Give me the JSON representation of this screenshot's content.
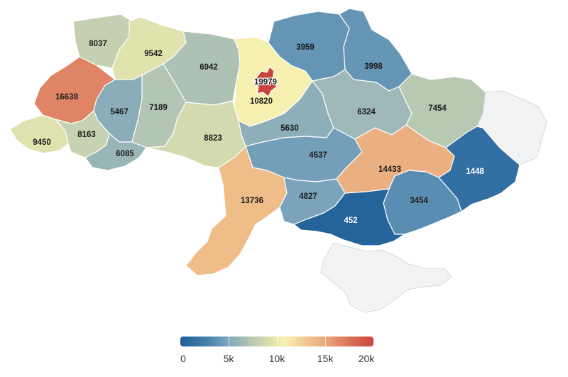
{
  "map": {
    "regions": [
      {
        "id": "volyn",
        "value": 8037
      },
      {
        "id": "rivne",
        "value": 9542
      },
      {
        "id": "zhytomyr",
        "value": 6942
      },
      {
        "id": "kyiv-oblast",
        "value": 10820
      },
      {
        "id": "kyiv-city",
        "value": 19979
      },
      {
        "id": "chernihiv",
        "value": 3959
      },
      {
        "id": "sumy",
        "value": 3998
      },
      {
        "id": "lviv",
        "value": 16638
      },
      {
        "id": "ternopil",
        "value": 5467
      },
      {
        "id": "khmelnytskyi",
        "value": 7189
      },
      {
        "id": "cherkasy",
        "value": 5630
      },
      {
        "id": "poltava",
        "value": 6324
      },
      {
        "id": "kharkiv",
        "value": 7454
      },
      {
        "id": "zakarpattia",
        "value": 9450
      },
      {
        "id": "ivano-frankivsk",
        "value": 8163
      },
      {
        "id": "chernivtsi",
        "value": 6085
      },
      {
        "id": "vinnytsia",
        "value": 8823
      },
      {
        "id": "kirovohrad",
        "value": 4537
      },
      {
        "id": "dnipropetrovsk",
        "value": 14433
      },
      {
        "id": "luhansk",
        "value": null
      },
      {
        "id": "donetsk",
        "value": 1448
      },
      {
        "id": "odesa",
        "value": 13736
      },
      {
        "id": "mykolaiv",
        "value": 4827
      },
      {
        "id": "zaporizhzhia",
        "value": 3454
      },
      {
        "id": "kherson",
        "value": 452
      },
      {
        "id": "crimea",
        "value": null
      }
    ],
    "colors": {
      "no_data": "#f2f3f5",
      "scale": [
        "#1f5d97",
        "#b3c6b4",
        "#f5f0b0",
        "#c8453f"
      ]
    }
  },
  "legend": {
    "min": 0,
    "max": 20000,
    "ticks": [
      "0",
      "5k",
      "10k",
      "15k",
      "20k"
    ]
  }
}
